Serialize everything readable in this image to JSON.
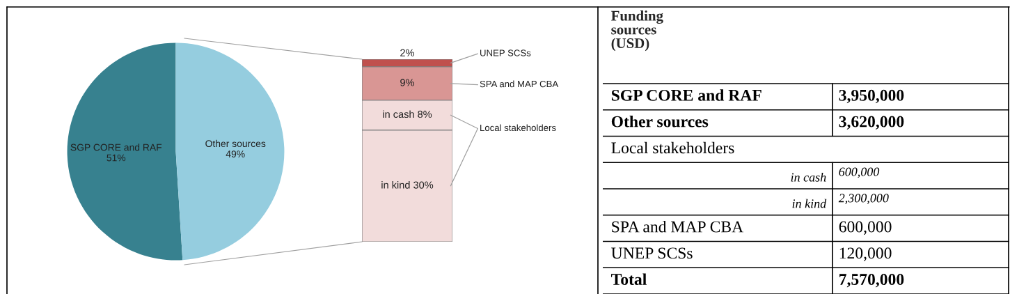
{
  "chart_data": [
    {
      "type": "pie",
      "categories": [
        "SGP CORE and RAF",
        "Other sources"
      ],
      "values": [
        51,
        49
      ],
      "colors": [
        "#37818f",
        "#95cddf"
      ],
      "value_labels": [
        "51%",
        "49%"
      ]
    },
    {
      "type": "bar",
      "stacked": true,
      "categories": [
        null
      ],
      "ylim": [
        0,
        49
      ],
      "series": [
        {
          "color": "#f2dcdb",
          "values": [
            30
          ],
          "value_labels": [
            "in kind 30%"
          ]
        },
        {
          "name": "Local stakeholders",
          "color": "#f2dcdb",
          "values": [
            8
          ],
          "value_labels": [
            "in cash 8%"
          ]
        },
        {
          "name": "SPA and MAP CBA",
          "color": "#d99694",
          "values": [
            9
          ],
          "value_labels": [
            "9%"
          ]
        },
        {
          "name": "UNEP SCSs",
          "color": "#c0504d",
          "values": [
            2
          ],
          "value_labels": [
            "2%"
          ]
        }
      ]
    },
    {
      "type": "other",
      "title": "Funding sources (USD)",
      "categories": [
        "SGP CORE and RAF",
        "Other sources",
        "Local stakeholders",
        "in cash",
        "in kind",
        "SPA and MAP CBA",
        "UNEP SCSs",
        "Total"
      ],
      "value_labels": [
        "3,950,000",
        "3,620,000",
        null,
        "600,000",
        "2,300,000",
        "600,000",
        "120,000",
        "7,570,000"
      ]
    }
  ]
}
